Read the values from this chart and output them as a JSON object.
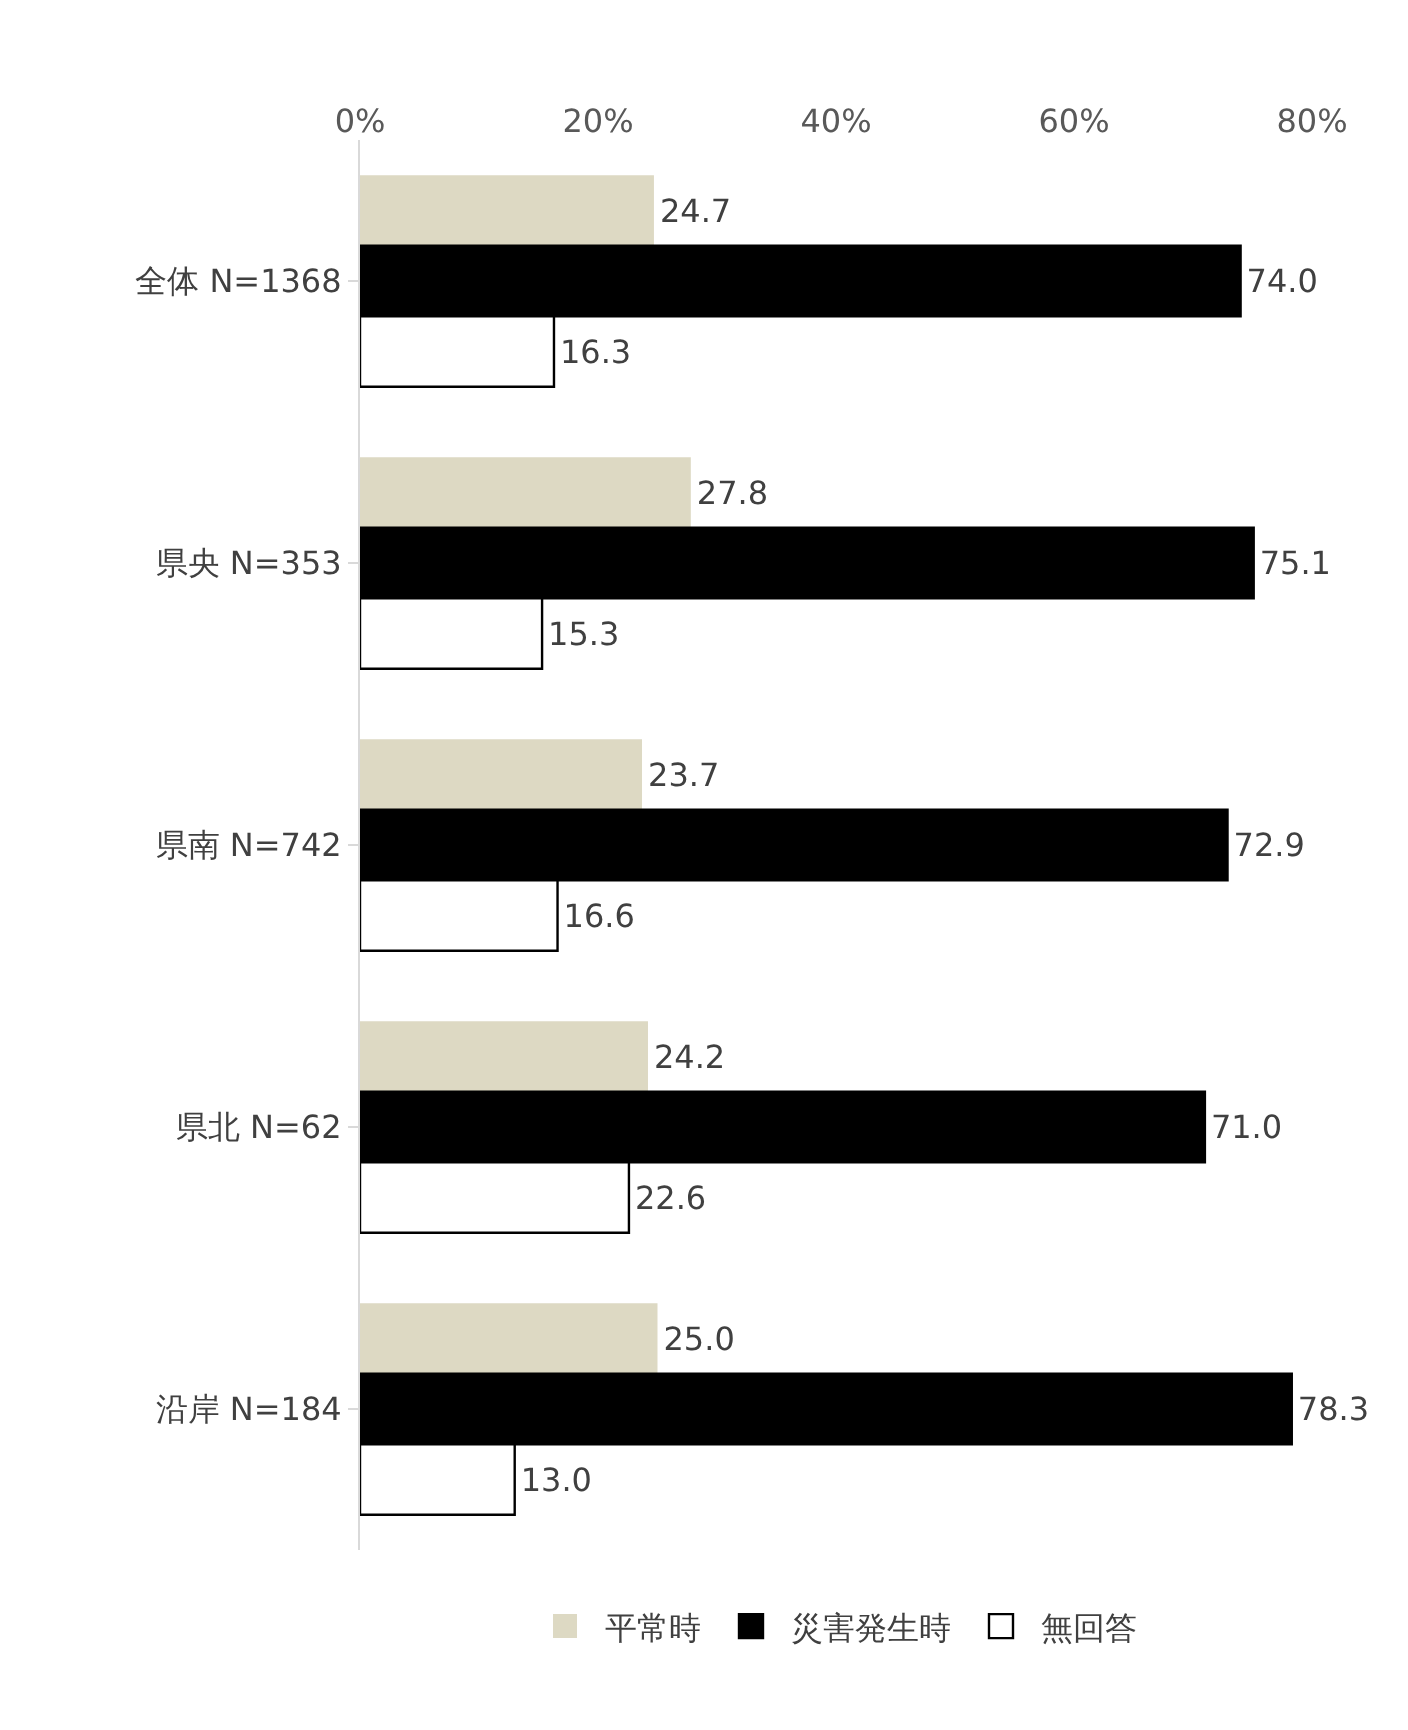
{
  "chart_data": {
    "type": "bar",
    "orientation": "horizontal",
    "categories": [
      "全体 N=1368",
      "県央 N=353",
      "県南 N=742",
      "県北 N=62",
      "沿岸 N=184"
    ],
    "series": [
      {
        "name": "平常時",
        "color": "#ddd9c3",
        "values": [
          24.7,
          27.8,
          23.7,
          24.2,
          25.0
        ],
        "value_labels": [
          "24.7",
          "27.8",
          "23.7",
          "24.2",
          "25.0"
        ]
      },
      {
        "name": "災害発生時",
        "color": "#000000",
        "values": [
          74.0,
          75.1,
          72.9,
          71.0,
          78.3
        ],
        "value_labels": [
          "74.0",
          "75.1",
          "72.9",
          "71.0",
          "78.3"
        ]
      },
      {
        "name": "無回答",
        "color": "#ffffff",
        "values": [
          16.3,
          15.3,
          16.6,
          22.6,
          13.0
        ],
        "value_labels": [
          "16.3",
          "15.3",
          "16.6",
          "22.6",
          "13.0"
        ]
      }
    ],
    "xlim": [
      0,
      80
    ],
    "xticks": [
      {
        "value": 0,
        "label": "0%"
      },
      {
        "value": 20,
        "label": "20%"
      },
      {
        "value": 40,
        "label": "40%"
      },
      {
        "value": 60,
        "label": "60%"
      },
      {
        "value": 80,
        "label": "80%"
      }
    ],
    "grid": false,
    "legend": "bottom"
  }
}
